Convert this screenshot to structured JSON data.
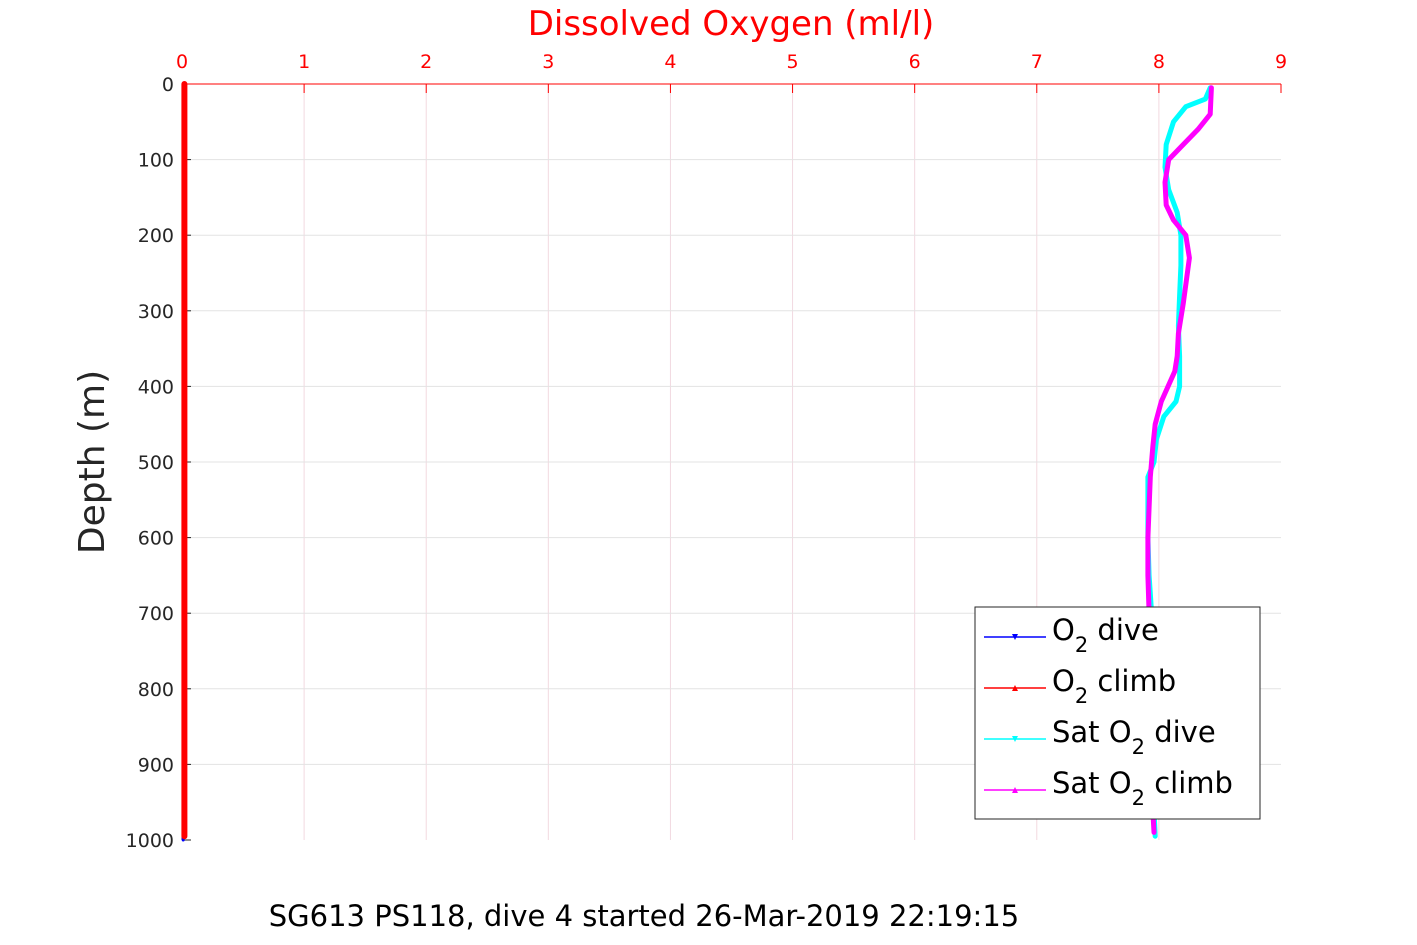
{
  "chart_data": {
    "type": "line",
    "title": "Dissolved Oxygen (ml/l)",
    "ylabel": "Depth (m)",
    "xlabel": "",
    "caption": "SG613 PS118, dive 4 started 26-Mar-2019 22:19:15",
    "xlim": [
      0,
      9
    ],
    "ylim": [
      0,
      1000
    ],
    "y_reversed": true,
    "x_axis_position": "top",
    "xticks": [
      "0",
      "1",
      "2",
      "3",
      "4",
      "5",
      "6",
      "7",
      "8",
      "9"
    ],
    "yticks": [
      "0",
      "100",
      "200",
      "300",
      "400",
      "500",
      "600",
      "700",
      "800",
      "900",
      "1000"
    ],
    "grid": true,
    "legend_position": "bottom-right",
    "legend": [
      {
        "pre": "O",
        "sub": "2",
        "post": " dive"
      },
      {
        "pre": "O",
        "sub": "2",
        "post": " climb"
      },
      {
        "pre": "Sat O",
        "sub": "2",
        "post": " dive"
      },
      {
        "pre": "Sat O",
        "sub": "2",
        "post": " climb"
      }
    ],
    "colors": {
      "o2_dive": "#0000ff",
      "o2_climb": "#ff0000",
      "sat_dive": "#00ffff",
      "sat_climb": "#ff00ff",
      "grid": "#f2d9e0",
      "axis": "#ff0000"
    },
    "series": [
      {
        "name": "O2 dive",
        "x": [
          0.01,
          0.01,
          0.01,
          0.01,
          0.01
        ],
        "y": [
          0,
          250,
          500,
          750,
          1000
        ]
      },
      {
        "name": "O2 climb",
        "x": [
          0.02,
          0.02,
          0.02,
          0.02,
          0.02
        ],
        "y": [
          0,
          250,
          500,
          750,
          995
        ]
      },
      {
        "name": "Sat O2 dive",
        "x": [
          8.42,
          8.38,
          8.22,
          8.12,
          8.06,
          8.05,
          8.08,
          8.15,
          8.18,
          8.18,
          8.17,
          8.16,
          8.17,
          8.17,
          8.14,
          8.04,
          7.98,
          7.96,
          7.91,
          7.91,
          7.92,
          7.94,
          7.94,
          7.95,
          7.96,
          7.97
        ],
        "y": [
          5,
          20,
          30,
          50,
          80,
          110,
          140,
          170,
          200,
          240,
          280,
          320,
          360,
          400,
          420,
          440,
          470,
          500,
          520,
          600,
          650,
          700,
          800,
          900,
          960,
          995
        ]
      },
      {
        "name": "Sat O2 climb",
        "x": [
          8.43,
          8.42,
          8.32,
          8.2,
          8.08,
          8.05,
          8.06,
          8.12,
          8.22,
          8.25,
          8.2,
          8.16,
          8.15,
          8.13,
          8.02,
          7.97,
          7.95,
          7.93,
          7.91,
          7.91,
          7.92,
          7.93,
          7.94,
          7.95,
          7.96
        ],
        "y": [
          5,
          40,
          60,
          80,
          100,
          130,
          160,
          180,
          200,
          230,
          290,
          330,
          360,
          380,
          420,
          450,
          480,
          520,
          600,
          650,
          700,
          800,
          900,
          960,
          990
        ]
      }
    ]
  }
}
